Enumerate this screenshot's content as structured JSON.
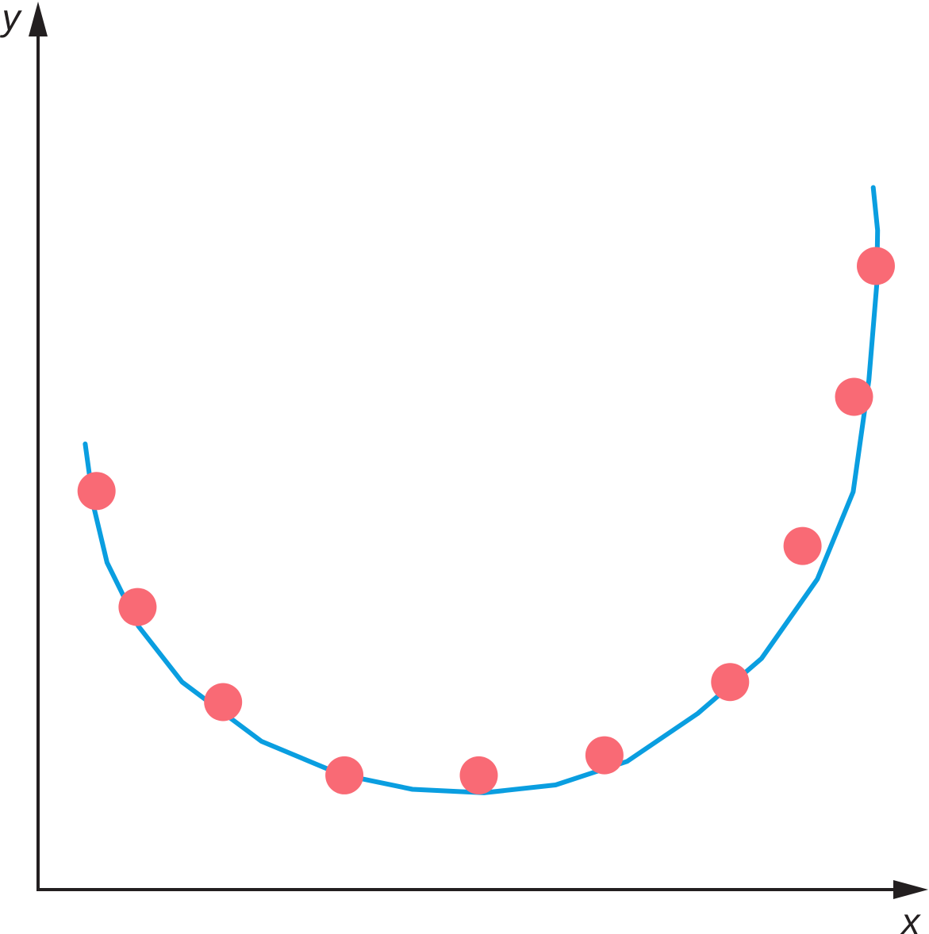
{
  "chart_data": {
    "type": "scatter",
    "x_label": "x",
    "y_label": "y",
    "xlim": [
      0,
      100
    ],
    "ylim": [
      0,
      100
    ],
    "series": [
      {
        "type": "scatter",
        "color": "#f96a75",
        "x": [
          6.7,
          11.4,
          21.2,
          35.1,
          50.5,
          64.9,
          79.3,
          87.6,
          93.5,
          96.0
        ],
        "values": [
          45.7,
          32.4,
          21.5,
          13.1,
          13.1,
          15.4,
          23.8,
          39.4,
          56.5,
          71.5
        ]
      },
      {
        "type": "line",
        "color": "#0a9ee0",
        "x": [
          5.4,
          6.4,
          7.9,
          11.5,
          16.5,
          25.6,
          34.7,
          42.9,
          51.1,
          59.3,
          67.5,
          75.6,
          82.9,
          89.3,
          93.4,
          95.2,
          96.1,
          96.2,
          95.7
        ],
        "values": [
          51.1,
          43.8,
          37.5,
          30.2,
          23.8,
          17.0,
          13.2,
          11.5,
          11.1,
          12.0,
          14.7,
          20.2,
          26.5,
          35.6,
          45.6,
          58.4,
          69.3,
          75.6,
          80.5
        ]
      }
    ]
  }
}
